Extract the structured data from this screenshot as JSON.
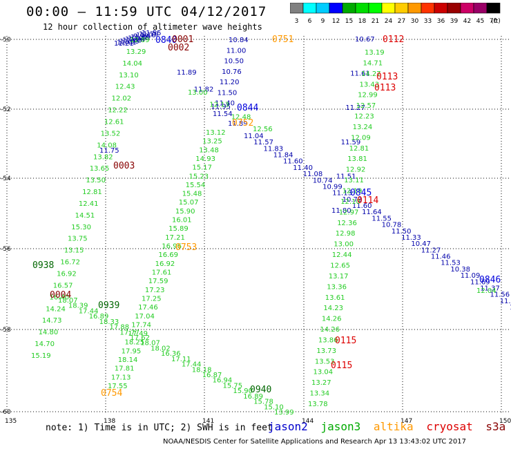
{
  "header": {
    "title": "00:00 – 11:59 UTC 04/12/2017",
    "subtitle": "12 hour collection of altimeter wave heights"
  },
  "scale": {
    "labels": [
      "3",
      "6",
      "9",
      "12",
      "15",
      "18",
      "21",
      "24",
      "27",
      "30",
      "33",
      "36",
      "39",
      "42",
      "45",
      "70"
    ],
    "unit": "(ft)",
    "colors": [
      "#808080",
      "#00ffff",
      "#00ccff",
      "#0000ff",
      "#00aa00",
      "#00dd00",
      "#00ff00",
      "#ffff00",
      "#ffcc00",
      "#ff9900",
      "#ff3300",
      "#cc0000",
      "#990000",
      "#cc0066",
      "#990066",
      "#000000"
    ]
  },
  "map": {
    "lon_ticks": [
      "135",
      "138",
      "141",
      "144",
      "147",
      "150"
    ],
    "lat_ticks": [
      "-50",
      "-52",
      "-54",
      "-56",
      "-58",
      "-60"
    ]
  },
  "satellites": [
    {
      "name": "jason2",
      "color": "#0000cc"
    },
    {
      "name": "jason3",
      "color": "#00aa00"
    },
    {
      "name": "altika",
      "color": "#ff9900"
    },
    {
      "name": "cryosat",
      "color": "#dd0000"
    },
    {
      "name": "s3a",
      "color": "#880000"
    }
  ],
  "tracks": [
    {
      "sat": "jason2",
      "color": "#0000aa",
      "start": [
        165,
        62
      ],
      "end": [
        205,
        47
      ],
      "values": [
        "11.21",
        "11.01",
        "11.53",
        "11.83",
        "10.84",
        "10.07",
        "11.39",
        "9.99",
        "11.10",
        "11.59",
        "11.55"
      ]
    },
    {
      "sat": "jason2",
      "color": "#0000aa",
      "start": [
        144,
        217
      ],
      "end": [
        144,
        217
      ],
      "values": [
        "11.75"
      ]
    },
    {
      "sat": "jason2",
      "color": "#0000aa",
      "start": [
        256,
        104
      ],
      "end": [
        330,
        178
      ],
      "values": [
        "11.89",
        "11.82",
        "11.95",
        "11.89"
      ]
    },
    {
      "sat": "jason2",
      "color": "#0000aa",
      "start": [
        331,
        57
      ],
      "end": [
        308,
        164
      ],
      "values": [
        "10.84",
        "11.00",
        "10.50",
        "10.76",
        "11.20",
        "11.50",
        "11.40",
        "11.54"
      ]
    },
    {
      "sat": "jason2",
      "color": "#0000aa",
      "start": [
        353,
        196
      ],
      "end": [
        738,
        444
      ],
      "values": [
        "11.04",
        "11.57",
        "11.83",
        "11.84",
        "11.60",
        "11.40",
        "11.08",
        "10.74",
        "10.99",
        "11.13",
        "10.73",
        "11.60",
        "11.64",
        "11.55",
        "10.78",
        "11.50",
        "11.33",
        "10.47",
        "11.27",
        "11.46",
        "11.53",
        "10.38",
        "11.09",
        "11.69",
        "11.37",
        "11.56",
        "11.90",
        "11.31"
      ]
    },
    {
      "sat": "jason2",
      "color": "#0000aa",
      "start": [
        514,
        56
      ],
      "end": [
        480,
        304
      ],
      "values": [
        "10.67",
        "11.61",
        "11.27",
        "11.59",
        "11.51",
        "11.80"
      ]
    },
    {
      "sat": "jason3",
      "color": "#22cc22",
      "start": [
        188,
        57
      ],
      "end": [
        45,
        514
      ],
      "values": [
        "12.89",
        "13.29",
        "14.04",
        "13.10",
        "12.43",
        "12.02",
        "12.22",
        "12.61",
        "13.52",
        "14.08",
        "13.82",
        "13.65",
        "13.50",
        "12.81",
        "12.41",
        "14.51",
        "15.30",
        "13.75",
        "13.15",
        "16.72",
        "16.92",
        "16.57",
        "16.40",
        "14.24",
        "14.73",
        "14.80",
        "14.70",
        "15.19"
      ]
    },
    {
      "sat": "jason3",
      "color": "#22cc22",
      "start": [
        272,
        133
      ],
      "end": [
        366,
        186
      ],
      "values": [
        "13.00",
        "12.13",
        "12.48",
        "12.56"
      ]
    },
    {
      "sat": "jason3",
      "color": "#22cc22",
      "start": [
        298,
        191
      ],
      "end": [
        156,
        558
      ],
      "values": [
        "13.12",
        "13.25",
        "13.48",
        "14.93",
        "15.17",
        "15.23",
        "15.54",
        "15.48",
        "15.07",
        "15.90",
        "16.01",
        "15.89",
        "17.21",
        "16.96",
        "16.69",
        "16.92",
        "17.61",
        "17.59",
        "17.23",
        "17.25",
        "17.46",
        "17.04",
        "17.74",
        "17.49",
        "18.25",
        "17.95",
        "18.14",
        "17.81",
        "17.13",
        "17.55"
      ]
    },
    {
      "sat": "jason3",
      "color": "#22cc22",
      "start": [
        84,
        434
      ],
      "end": [
        397,
        596
      ],
      "values": [
        "18.07",
        "18.39",
        "17.44",
        "16.89",
        "18.33",
        "17.88",
        "17.77",
        "17.62",
        "18.07",
        "18.02",
        "16.36",
        "17.11",
        "17.44",
        "18.18",
        "16.87",
        "16.94",
        "15.75",
        "15.90",
        "16.89",
        "15.78",
        "15.10",
        "13.99"
      ]
    },
    {
      "sat": "jason3",
      "color": "#22cc22",
      "start": [
        528,
        75
      ],
      "end": [
        446,
        584
      ],
      "values": [
        "13.19",
        "14.71",
        "14.27",
        "13.43",
        "12.99",
        "12.57",
        "12.23",
        "13.24",
        "12.09",
        "12.81",
        "13.81",
        "12.92",
        "13.11",
        "12.19",
        "12.10",
        "12.97",
        "12.36",
        "12.98",
        "13.00",
        "12.44",
        "12.65",
        "13.17",
        "13.36",
        "13.61",
        "14.23",
        "14.26",
        "14.26",
        "13.86",
        "13.73",
        "13.53",
        "13.04",
        "13.27",
        "13.34",
        "13.78"
      ]
    },
    {
      "sat": "jason3",
      "color": "#22cc22",
      "start": [
        690,
        420
      ],
      "end": [
        690,
        420
      ],
      "values": [
        "12.04"
      ]
    }
  ],
  "labels": [
    {
      "text": "0840",
      "color": "#0000dd",
      "pos": [
        225,
        57
      ]
    },
    {
      "text": "0001",
      "color": "#880000",
      "pos": [
        249,
        56
      ]
    },
    {
      "text": "0002",
      "color": "#880000",
      "pos": [
        243,
        68
      ]
    },
    {
      "text": "0751",
      "color": "#ff9900",
      "pos": [
        394,
        56
      ]
    },
    {
      "text": "0112",
      "color": "#dd0000",
      "pos": [
        554,
        56
      ]
    },
    {
      "text": "0113",
      "color": "#dd0000",
      "pos": [
        545,
        110
      ]
    },
    {
      "text": "0113",
      "color": "#dd0000",
      "pos": [
        542,
        126
      ]
    },
    {
      "text": "0844",
      "color": "#0000dd",
      "pos": [
        343,
        155
      ]
    },
    {
      "text": "0752",
      "color": "#ff9900",
      "pos": [
        336,
        177
      ]
    },
    {
      "text": "0003",
      "color": "#880000",
      "pos": [
        164,
        239
      ]
    },
    {
      "text": "0845",
      "color": "#0000dd",
      "pos": [
        507,
        278
      ]
    },
    {
      "text": "0114",
      "color": "#dd0000",
      "pos": [
        517,
        289
      ]
    },
    {
      "text": "0753",
      "color": "#ff9900",
      "pos": [
        254,
        357
      ]
    },
    {
      "text": "0938",
      "color": "#006600",
      "pos": [
        47,
        383
      ]
    },
    {
      "text": "0846",
      "color": "#0000dd",
      "pos": [
        694,
        404
      ]
    },
    {
      "text": "0004",
      "color": "#880000",
      "pos": [
        72,
        426
      ]
    },
    {
      "text": "0939",
      "color": "#006600",
      "pos": [
        142,
        441
      ]
    },
    {
      "text": "0115",
      "color": "#dd0000",
      "pos": [
        485,
        492
      ]
    },
    {
      "text": "0115",
      "color": "#dd0000",
      "pos": [
        479,
        528
      ]
    },
    {
      "text": "0940",
      "color": "#006600",
      "pos": [
        362,
        563
      ]
    },
    {
      "text": "0754",
      "color": "#ff9900",
      "pos": [
        146,
        568
      ]
    }
  ],
  "footer": {
    "note": "note: 1) Time is in UTC; 2) SWH is in feet",
    "credit": "NOAA/NESDIS Center for Satellite Applications and Research   Apr 13 13:43:02 UTC 2017"
  }
}
